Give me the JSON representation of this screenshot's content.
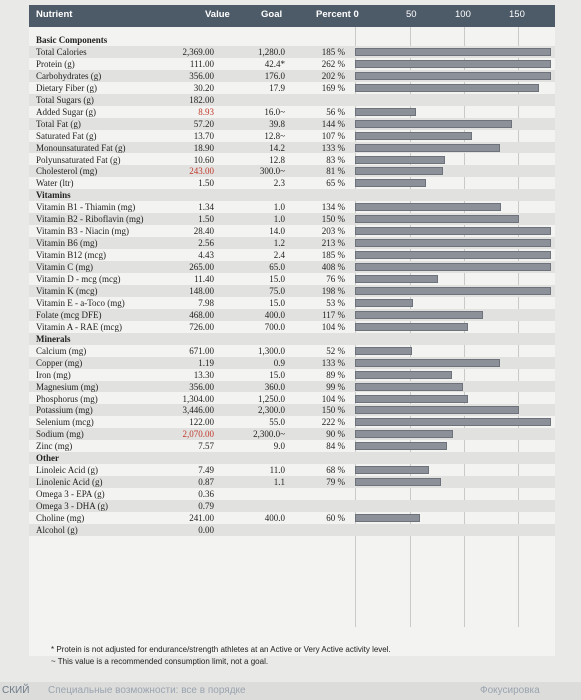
{
  "header": {
    "nutrient": "Nutrient",
    "value": "Value",
    "goal": "Goal",
    "percent": "Percent 0",
    "scale": [
      "50",
      "100",
      "150"
    ]
  },
  "rows": [
    {
      "section": "Basic Components"
    },
    {
      "name": "Total Calories",
      "value": "2,369.00",
      "goal": "1,280.0",
      "percent": "185 %",
      "pct": 185
    },
    {
      "name": "Protein (g)",
      "value": "111.00",
      "goal": "42.4*",
      "percent": "262 %",
      "pct": 262
    },
    {
      "name": "Carbohydrates (g)",
      "value": "356.00",
      "goal": "176.0",
      "percent": "202 %",
      "pct": 202
    },
    {
      "name": "Dietary Fiber (g)",
      "value": "30.20",
      "goal": "17.9",
      "percent": "169 %",
      "pct": 169
    },
    {
      "name": "Total Sugars (g)",
      "value": "182.00",
      "goal": "",
      "percent": "",
      "pct": 0
    },
    {
      "name": "Added Sugar (g)",
      "value": "8.93",
      "red": true,
      "goal": "16.0~",
      "percent": "56 %",
      "pct": 56
    },
    {
      "name": "Total Fat (g)",
      "value": "57.20",
      "goal": "39.8",
      "percent": "144 %",
      "pct": 144
    },
    {
      "name": "Saturated Fat (g)",
      "value": "13.70",
      "goal": "12.8~",
      "percent": "107 %",
      "pct": 107
    },
    {
      "name": "Monounsaturated Fat (g)",
      "value": "18.90",
      "goal": "14.2",
      "percent": "133 %",
      "pct": 133
    },
    {
      "name": "Polyunsaturated Fat (g)",
      "value": "10.60",
      "goal": "12.8",
      "percent": "83 %",
      "pct": 83
    },
    {
      "name": "Cholesterol (mg)",
      "value": "243.00",
      "red": true,
      "goal": "300.0~",
      "percent": "81 %",
      "pct": 81
    },
    {
      "name": "Water (ltr)",
      "value": "1.50",
      "goal": "2.3",
      "percent": "65 %",
      "pct": 65
    },
    {
      "section": "Vitamins"
    },
    {
      "name": "Vitamin B1 - Thiamin (mg)",
      "value": "1.34",
      "goal": "1.0",
      "percent": "134 %",
      "pct": 134
    },
    {
      "name": "Vitamin B2 - Riboflavin (mg)",
      "value": "1.50",
      "goal": "1.0",
      "percent": "150 %",
      "pct": 150
    },
    {
      "name": "Vitamin B3 - Niacin (mg)",
      "value": "28.40",
      "goal": "14.0",
      "percent": "203 %",
      "pct": 203
    },
    {
      "name": "Vitamin B6 (mg)",
      "value": "2.56",
      "goal": "1.2",
      "percent": "213 %",
      "pct": 213
    },
    {
      "name": "Vitamin B12 (mcg)",
      "value": "4.43",
      "goal": "2.4",
      "percent": "185 %",
      "pct": 185
    },
    {
      "name": "Vitamin C (mg)",
      "value": "265.00",
      "goal": "65.0",
      "percent": "408 %",
      "pct": 408
    },
    {
      "name": "Vitamin D - mcg (mcg)",
      "value": "11.40",
      "goal": "15.0",
      "percent": "76 %",
      "pct": 76
    },
    {
      "name": "Vitamin K (mcg)",
      "value": "148.00",
      "goal": "75.0",
      "percent": "198 %",
      "pct": 198
    },
    {
      "name": "Vitamin E - a-Toco (mg)",
      "value": "7.98",
      "goal": "15.0",
      "percent": "53 %",
      "pct": 53
    },
    {
      "name": "Folate (mcg DFE)",
      "value": "468.00",
      "goal": "400.0",
      "percent": "117 %",
      "pct": 117
    },
    {
      "name": "Vitamin A - RAE (mcg)",
      "value": "726.00",
      "goal": "700.0",
      "percent": "104 %",
      "pct": 104
    },
    {
      "section": "Minerals"
    },
    {
      "name": "Calcium (mg)",
      "value": "671.00",
      "goal": "1,300.0",
      "percent": "52 %",
      "pct": 52
    },
    {
      "name": "Copper (mg)",
      "value": "1.19",
      "goal": "0.9",
      "percent": "133 %",
      "pct": 133
    },
    {
      "name": "Iron (mg)",
      "value": "13.30",
      "goal": "15.0",
      "percent": "89 %",
      "pct": 89
    },
    {
      "name": "Magnesium (mg)",
      "value": "356.00",
      "goal": "360.0",
      "percent": "99 %",
      "pct": 99
    },
    {
      "name": "Phosphorus (mg)",
      "value": "1,304.00",
      "goal": "1,250.0",
      "percent": "104 %",
      "pct": 104
    },
    {
      "name": "Potassium (mg)",
      "value": "3,446.00",
      "goal": "2,300.0",
      "percent": "150 %",
      "pct": 150
    },
    {
      "name": "Selenium (mcg)",
      "value": "122.00",
      "goal": "55.0",
      "percent": "222 %",
      "pct": 222
    },
    {
      "name": "Sodium (mg)",
      "value": "2,070.00",
      "red": true,
      "goal": "2,300.0~",
      "percent": "90 %",
      "pct": 90
    },
    {
      "name": "Zinc (mg)",
      "value": "7.57",
      "goal": "9.0",
      "percent": "84 %",
      "pct": 84
    },
    {
      "section": "Other"
    },
    {
      "name": "Linoleic Acid (g)",
      "value": "7.49",
      "goal": "11.0",
      "percent": "68 %",
      "pct": 68
    },
    {
      "name": "Linolenic Acid (g)",
      "value": "0.87",
      "goal": "1.1",
      "percent": "79 %",
      "pct": 79
    },
    {
      "name": "Omega 3 - EPA (g)",
      "value": "0.36",
      "goal": "",
      "percent": "",
      "pct": 0
    },
    {
      "name": "Omega 3 - DHA (g)",
      "value": "0.79",
      "goal": "",
      "percent": "",
      "pct": 0
    },
    {
      "name": "Choline (mg)",
      "value": "241.00",
      "goal": "400.0",
      "percent": "60 %",
      "pct": 60
    },
    {
      "name": "Alcohol (g)",
      "value": "0.00",
      "goal": "",
      "percent": "",
      "pct": 0
    }
  ],
  "footnotes": [
    "* Protein is not adjusted for endurance/strength athletes at an Active or Very Active activity level.",
    "~ This value is a recommended consumption limit, not a goal."
  ],
  "bottom_strip": {
    "left": "СКИЙ",
    "middle": "Специальные возможности: все в порядке",
    "right": "Фокусировка"
  }
}
